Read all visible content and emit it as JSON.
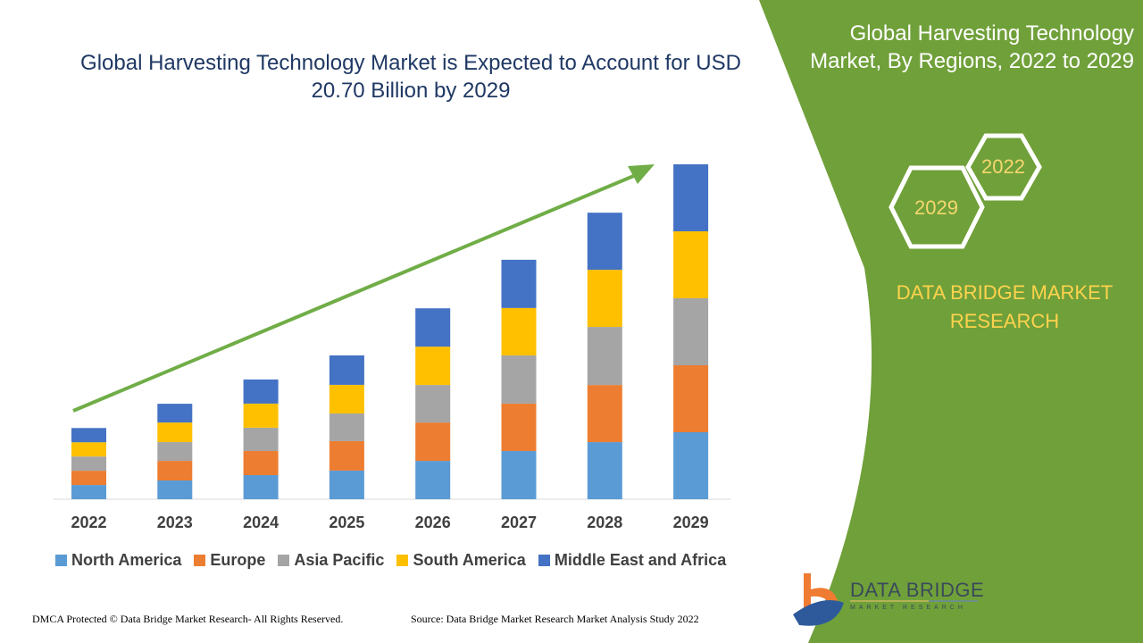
{
  "title": "Global Harvesting Technology Market is Expected to Account for USD 20.70 Billion by 2029",
  "side_panel": {
    "title": "Global Harvesting Technology Market, By Regions, 2022 to 2029",
    "hex_years": [
      "2022",
      "2029"
    ],
    "brand": "DATA BRIDGE MARKET RESEARCH",
    "logo_text": "DATA BRIDGE",
    "logo_sub": "MARKET RESEARCH",
    "color": "#70a03a"
  },
  "footer": {
    "left": "DMCA Protected © Data Bridge Market Research- All Rights Reserved.",
    "right": "Source: Data Bridge Market Research Market Analysis Study 2022"
  },
  "chart_data": {
    "type": "bar",
    "stacked": true,
    "title": "Global Harvesting Technology Market is Expected to Account for USD 20.70 Billion by 2029",
    "xlabel": "",
    "ylabel": "",
    "grid": false,
    "legend_position": "bottom",
    "trend_arrow": true,
    "categories": [
      "2022",
      "2023",
      "2024",
      "2025",
      "2026",
      "2027",
      "2028",
      "2029"
    ],
    "series": [
      {
        "name": "North America",
        "color": "#5b9bd5",
        "values": [
          0.88,
          1.16,
          1.49,
          1.77,
          2.37,
          2.98,
          3.53,
          4.14
        ]
      },
      {
        "name": "Europe",
        "color": "#ed7d31",
        "values": [
          0.88,
          1.21,
          1.49,
          1.82,
          2.37,
          2.93,
          3.53,
          4.14
        ]
      },
      {
        "name": "Asia Pacific",
        "color": "#a5a5a5",
        "values": [
          0.88,
          1.16,
          1.44,
          1.71,
          2.32,
          2.98,
          3.59,
          4.14
        ]
      },
      {
        "name": "South America",
        "color": "#ffc000",
        "values": [
          0.88,
          1.21,
          1.49,
          1.77,
          2.37,
          2.93,
          3.53,
          4.14
        ]
      },
      {
        "name": "Middle East and Africa",
        "color": "#4472c4",
        "values": [
          0.88,
          1.16,
          1.49,
          1.82,
          2.37,
          2.98,
          3.53,
          4.14
        ]
      }
    ],
    "total_2029": 20.7,
    "unit": "USD Billion"
  }
}
